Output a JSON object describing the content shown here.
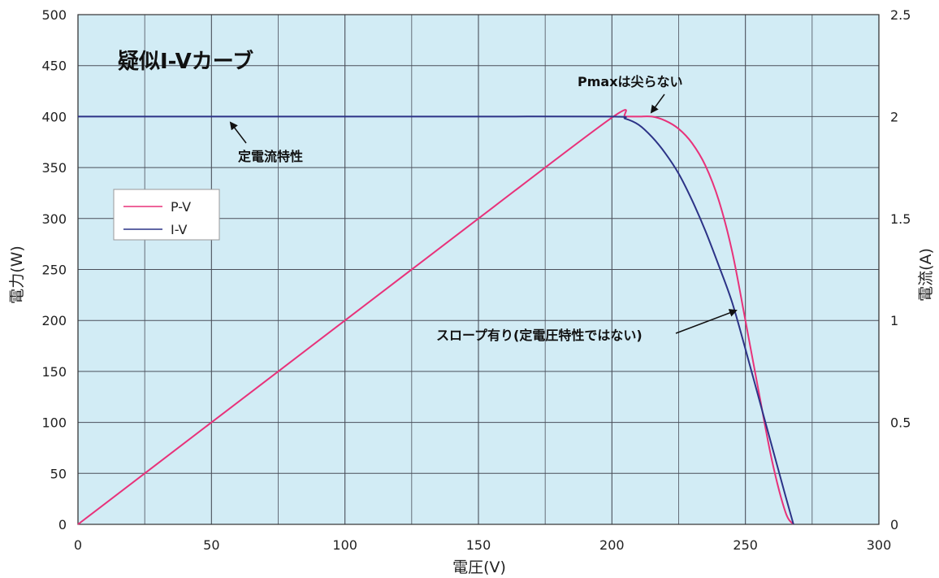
{
  "chart_data": {
    "type": "line",
    "title": "疑似I-Vカーブ",
    "xlabel": "電圧(V)",
    "ylabel_left": "電力(W)",
    "ylabel_right": "電流(A)",
    "xlim": [
      0,
      300
    ],
    "ylim_left": [
      0,
      500
    ],
    "ylim_right": [
      0,
      2.5
    ],
    "xticks": [
      "0",
      "50",
      "100",
      "150",
      "200",
      "250",
      "300"
    ],
    "yticks_left": [
      "0",
      "50",
      "100",
      "150",
      "200",
      "250",
      "300",
      "350",
      "400",
      "450",
      "500"
    ],
    "yticks_right": [
      "0",
      "0.5",
      "1",
      "1.5",
      "2",
      "2.5"
    ],
    "grid": true,
    "legend_position": "left",
    "series": [
      {
        "name": "P-V",
        "axis": "left",
        "color": "#e8327a",
        "x": [
          0,
          50,
          100,
          150,
          200,
          205,
          210,
          215,
          220,
          225,
          230,
          235,
          240,
          245,
          250,
          255,
          260,
          265,
          268
        ],
        "y": [
          0,
          100,
          200,
          300,
          399,
          400,
          400,
          400,
          396,
          388,
          374,
          352,
          318,
          268,
          200,
          130,
          62,
          12,
          0
        ]
      },
      {
        "name": "I-V",
        "axis": "right",
        "color": "#2c3387",
        "x": [
          0,
          50,
          100,
          150,
          200,
          205,
          210,
          215,
          220,
          225,
          230,
          235,
          240,
          245,
          250,
          255,
          260,
          265,
          268
        ],
        "y": [
          2.0,
          2.0,
          2.0,
          2.0,
          2.0,
          1.99,
          1.96,
          1.9,
          1.82,
          1.72,
          1.59,
          1.44,
          1.27,
          1.09,
          0.86,
          0.62,
          0.38,
          0.14,
          0
        ]
      }
    ],
    "annotations": [
      {
        "id": "flat",
        "text": "定電流特性"
      },
      {
        "id": "pmax",
        "text": "Pmaxは尖らない"
      },
      {
        "id": "slope",
        "text": "スロープ有り(定電圧特性ではない)"
      }
    ],
    "colors": {
      "plot_bg": "#d2ecf5",
      "grid": "#4a4f5a"
    }
  }
}
